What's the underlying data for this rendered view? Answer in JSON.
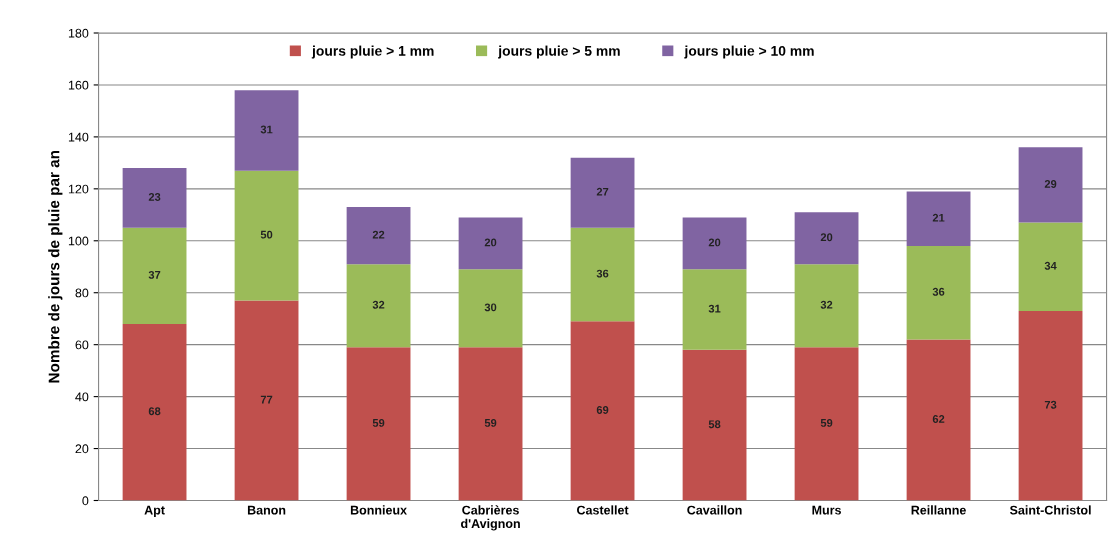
{
  "chart_data": {
    "type": "bar",
    "stacked": true,
    "ylabel": "Nombre de jours de pluie par an",
    "categories": [
      "Apt",
      "Banon",
      "Bonnieux",
      "Cabrières\nd'Avignon",
      "Castellet",
      "Cavaillon",
      "Murs",
      "Reillanne",
      "Saint-Christol"
    ],
    "series": [
      {
        "name": "jours pluie > 1 mm",
        "color": "#c0504d",
        "values": [
          68,
          77,
          59,
          59,
          69,
          58,
          59,
          62,
          73
        ]
      },
      {
        "name": "jours pluie > 5 mm",
        "color": "#9bbb59",
        "values": [
          37,
          50,
          32,
          30,
          36,
          31,
          32,
          36,
          34
        ]
      },
      {
        "name": "jours pluie > 10 mm",
        "color": "#8064a2",
        "values": [
          23,
          31,
          22,
          20,
          27,
          20,
          20,
          21,
          29
        ]
      }
    ],
    "ylim": [
      0,
      180
    ],
    "yticks": [
      0,
      20,
      40,
      60,
      80,
      100,
      120,
      140,
      160,
      180
    ],
    "grid": "y",
    "legend": "top",
    "data_labels": true
  }
}
